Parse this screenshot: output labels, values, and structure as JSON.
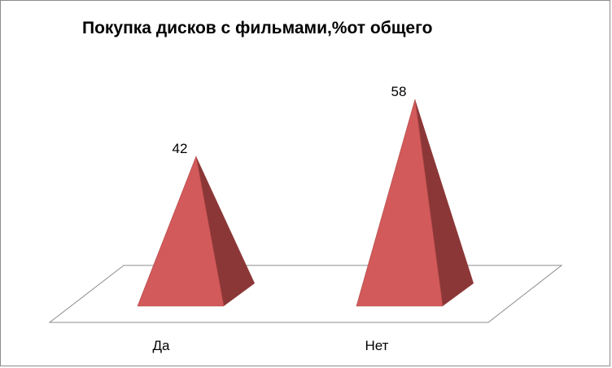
{
  "chart_data": {
    "type": "bar",
    "title": "Покупка дисков с фильмами,%от общего",
    "categories": [
      "Да",
      "Нет"
    ],
    "values": [
      42,
      58
    ],
    "data_labels": [
      "42",
      "58"
    ],
    "xlabel": "",
    "ylabel": "",
    "ylim": [
      0,
      58
    ],
    "grid": false,
    "legend": "none",
    "style": "3d-pyramid",
    "colors": {
      "face": "#D35A5A",
      "side": "#8C3737",
      "edge": "#B04646",
      "floor_line": "#8c8c8c"
    }
  }
}
